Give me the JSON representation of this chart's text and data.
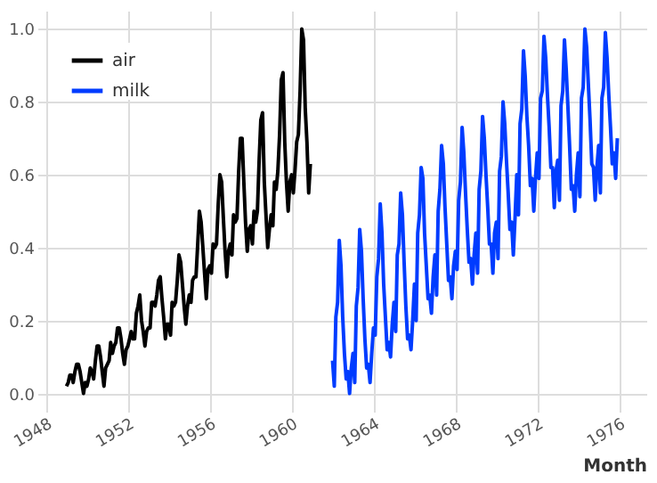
{
  "chart_data": {
    "type": "line",
    "xlabel": "Month",
    "xlim": [
      "1947-08",
      "1977-05"
    ],
    "xticks": [
      "1948",
      "1952",
      "1956",
      "1960",
      "1964",
      "1968",
      "1972",
      "1976"
    ],
    "ylim": [
      -0.05,
      1.05
    ],
    "yticks": [
      {
        "value": 0,
        "label": "0.0"
      },
      {
        "value": 0.2,
        "label": "0.2"
      },
      {
        "value": 0.4,
        "label": "0.4"
      },
      {
        "value": 0.6,
        "label": "0.6"
      },
      {
        "value": 0.8,
        "label": "0.8"
      },
      {
        "value": 1,
        "label": "1.0"
      }
    ],
    "grid": true,
    "legend": "top left",
    "line_style": "solid",
    "marker": "none",
    "series": [
      {
        "name": "air",
        "color": "#000000",
        "x": [
          "1949-01",
          "1949-02",
          "1949-03",
          "1949-04",
          "1949-05",
          "1949-06",
          "1949-07",
          "1949-08",
          "1949-09",
          "1949-10",
          "1949-11",
          "1949-12",
          "1950-01",
          "1950-02",
          "1950-03",
          "1950-04",
          "1950-05",
          "1950-06",
          "1950-07",
          "1950-08",
          "1950-09",
          "1950-10",
          "1950-11",
          "1950-12",
          "1951-01",
          "1951-02",
          "1951-03",
          "1951-04",
          "1951-05",
          "1951-06",
          "1951-07",
          "1951-08",
          "1951-09",
          "1951-10",
          "1951-11",
          "1951-12",
          "1952-01",
          "1952-02",
          "1952-03",
          "1952-04",
          "1952-05",
          "1952-06",
          "1952-07",
          "1952-08",
          "1952-09",
          "1952-10",
          "1952-11",
          "1952-12",
          "1953-01",
          "1953-02",
          "1953-03",
          "1953-04",
          "1953-05",
          "1953-06",
          "1953-07",
          "1953-08",
          "1953-09",
          "1953-10",
          "1953-11",
          "1953-12",
          "1954-01",
          "1954-02",
          "1954-03",
          "1954-04",
          "1954-05",
          "1954-06",
          "1954-07",
          "1954-08",
          "1954-09",
          "1954-10",
          "1954-11",
          "1954-12",
          "1955-01",
          "1955-02",
          "1955-03",
          "1955-04",
          "1955-05",
          "1955-06",
          "1955-07",
          "1955-08",
          "1955-09",
          "1955-10",
          "1955-11",
          "1955-12",
          "1956-01",
          "1956-02",
          "1956-03",
          "1956-04",
          "1956-05",
          "1956-06",
          "1956-07",
          "1956-08",
          "1956-09",
          "1956-10",
          "1956-11",
          "1956-12",
          "1957-01",
          "1957-02",
          "1957-03",
          "1957-04",
          "1957-05",
          "1957-06",
          "1957-07",
          "1957-08",
          "1957-09",
          "1957-10",
          "1957-11",
          "1957-12",
          "1958-01",
          "1958-02",
          "1958-03",
          "1958-04",
          "1958-05",
          "1958-06",
          "1958-07",
          "1958-08",
          "1958-09",
          "1958-10",
          "1958-11",
          "1958-12",
          "1959-01",
          "1959-02",
          "1959-03",
          "1959-04",
          "1959-05",
          "1959-06",
          "1959-07",
          "1959-08",
          "1959-09",
          "1959-10",
          "1959-11",
          "1959-12",
          "1960-01",
          "1960-02",
          "1960-03",
          "1960-04",
          "1960-05",
          "1960-06",
          "1960-07",
          "1960-08",
          "1960-09",
          "1960-10",
          "1960-11",
          "1960-12"
        ],
        "values": [
          0.02,
          0.03,
          0.05,
          0.05,
          0.03,
          0.06,
          0.08,
          0.08,
          0.06,
          0.03,
          0,
          0.03,
          0.02,
          0.04,
          0.07,
          0.06,
          0.04,
          0.09,
          0.13,
          0.13,
          0.1,
          0.06,
          0.02,
          0.07,
          0.08,
          0.09,
          0.14,
          0.11,
          0.13,
          0.14,
          0.18,
          0.18,
          0.15,
          0.11,
          0.08,
          0.12,
          0.13,
          0.15,
          0.17,
          0.15,
          0.15,
          0.22,
          0.24,
          0.27,
          0.2,
          0.17,
          0.13,
          0.17,
          0.18,
          0.18,
          0.25,
          0.25,
          0.24,
          0.27,
          0.31,
          0.32,
          0.26,
          0.21,
          0.15,
          0.19,
          0.19,
          0.16,
          0.25,
          0.24,
          0.25,
          0.31,
          0.38,
          0.36,
          0.3,
          0.24,
          0.19,
          0.24,
          0.27,
          0.25,
          0.31,
          0.32,
          0.32,
          0.41,
          0.5,
          0.47,
          0.4,
          0.33,
          0.26,
          0.34,
          0.35,
          0.33,
          0.41,
          0.4,
          0.41,
          0.52,
          0.6,
          0.58,
          0.48,
          0.39,
          0.32,
          0.39,
          0.41,
          0.38,
          0.49,
          0.47,
          0.48,
          0.61,
          0.7,
          0.7,
          0.58,
          0.47,
          0.39,
          0.45,
          0.46,
          0.41,
          0.5,
          0.47,
          0.5,
          0.64,
          0.75,
          0.77,
          0.58,
          0.49,
          0.4,
          0.45,
          0.49,
          0.46,
          0.58,
          0.56,
          0.61,
          0.71,
          0.86,
          0.88,
          0.69,
          0.58,
          0.5,
          0.58,
          0.6,
          0.55,
          0.61,
          0.69,
          0.71,
          0.83,
          1.0,
          0.97,
          0.78,
          0.69,
          0.55,
          0.63
        ]
      },
      {
        "name": "milk",
        "color": "#003cff",
        "x": [
          "1962-01",
          "1962-02",
          "1962-03",
          "1962-04",
          "1962-05",
          "1962-06",
          "1962-07",
          "1962-08",
          "1962-09",
          "1962-10",
          "1962-11",
          "1962-12",
          "1963-01",
          "1963-02",
          "1963-03",
          "1963-04",
          "1963-05",
          "1963-06",
          "1963-07",
          "1963-08",
          "1963-09",
          "1963-10",
          "1963-11",
          "1963-12",
          "1964-01",
          "1964-02",
          "1964-03",
          "1964-04",
          "1964-05",
          "1964-06",
          "1964-07",
          "1964-08",
          "1964-09",
          "1964-10",
          "1964-11",
          "1964-12",
          "1965-01",
          "1965-02",
          "1965-03",
          "1965-04",
          "1965-05",
          "1965-06",
          "1965-07",
          "1965-08",
          "1965-09",
          "1965-10",
          "1965-11",
          "1965-12",
          "1966-01",
          "1966-02",
          "1966-03",
          "1966-04",
          "1966-05",
          "1966-06",
          "1966-07",
          "1966-08",
          "1966-09",
          "1966-10",
          "1966-11",
          "1966-12",
          "1967-01",
          "1967-02",
          "1967-03",
          "1967-04",
          "1967-05",
          "1967-06",
          "1967-07",
          "1967-08",
          "1967-09",
          "1967-10",
          "1967-11",
          "1967-12",
          "1968-01",
          "1968-02",
          "1968-03",
          "1968-04",
          "1968-05",
          "1968-06",
          "1968-07",
          "1968-08",
          "1968-09",
          "1968-10",
          "1968-11",
          "1968-12",
          "1969-01",
          "1969-02",
          "1969-03",
          "1969-04",
          "1969-05",
          "1969-06",
          "1969-07",
          "1969-08",
          "1969-09",
          "1969-10",
          "1969-11",
          "1969-12",
          "1970-01",
          "1970-02",
          "1970-03",
          "1970-04",
          "1970-05",
          "1970-06",
          "1970-07",
          "1970-08",
          "1970-09",
          "1970-10",
          "1970-11",
          "1970-12",
          "1971-01",
          "1971-02",
          "1971-03",
          "1971-04",
          "1971-05",
          "1971-06",
          "1971-07",
          "1971-08",
          "1971-09",
          "1971-10",
          "1971-11",
          "1971-12",
          "1972-01",
          "1972-02",
          "1972-03",
          "1972-04",
          "1972-05",
          "1972-06",
          "1972-07",
          "1972-08",
          "1972-09",
          "1972-10",
          "1972-11",
          "1972-12",
          "1973-01",
          "1973-02",
          "1973-03",
          "1973-04",
          "1973-05",
          "1973-06",
          "1973-07",
          "1973-08",
          "1973-09",
          "1973-10",
          "1973-11",
          "1973-12",
          "1974-01",
          "1974-02",
          "1974-03",
          "1974-04",
          "1974-05",
          "1974-06",
          "1974-07",
          "1974-08",
          "1974-09",
          "1974-10",
          "1974-11",
          "1974-12",
          "1975-01",
          "1975-02",
          "1975-03",
          "1975-04",
          "1975-05",
          "1975-06",
          "1975-07",
          "1975-08",
          "1975-09",
          "1975-10",
          "1975-11",
          "1975-12"
        ],
        "values": [
          0.09,
          0.02,
          0.21,
          0.25,
          0.42,
          0.35,
          0.21,
          0.11,
          0.04,
          0.06,
          0,
          0.07,
          0.11,
          0.03,
          0.24,
          0.29,
          0.45,
          0.39,
          0.26,
          0.15,
          0.07,
          0.08,
          0.03,
          0.11,
          0.18,
          0.16,
          0.32,
          0.37,
          0.52,
          0.44,
          0.3,
          0.21,
          0.12,
          0.14,
          0.1,
          0.19,
          0.25,
          0.17,
          0.38,
          0.41,
          0.55,
          0.49,
          0.36,
          0.24,
          0.15,
          0.16,
          0.12,
          0.2,
          0.3,
          0.2,
          0.44,
          0.49,
          0.62,
          0.59,
          0.44,
          0.35,
          0.26,
          0.27,
          0.22,
          0.32,
          0.38,
          0.27,
          0.5,
          0.56,
          0.68,
          0.63,
          0.51,
          0.41,
          0.31,
          0.32,
          0.26,
          0.35,
          0.39,
          0.34,
          0.53,
          0.58,
          0.73,
          0.66,
          0.55,
          0.45,
          0.36,
          0.37,
          0.3,
          0.38,
          0.44,
          0.33,
          0.56,
          0.61,
          0.76,
          0.7,
          0.6,
          0.51,
          0.41,
          0.41,
          0.33,
          0.44,
          0.47,
          0.37,
          0.61,
          0.65,
          0.8,
          0.74,
          0.64,
          0.55,
          0.45,
          0.47,
          0.38,
          0.48,
          0.6,
          0.49,
          0.74,
          0.78,
          0.94,
          0.87,
          0.76,
          0.68,
          0.57,
          0.59,
          0.5,
          0.59,
          0.66,
          0.59,
          0.81,
          0.83,
          0.98,
          0.92,
          0.82,
          0.73,
          0.62,
          0.62,
          0.51,
          0.61,
          0.64,
          0.53,
          0.79,
          0.83,
          0.97,
          0.89,
          0.79,
          0.68,
          0.56,
          0.57,
          0.5,
          0.6,
          0.66,
          0.54,
          0.81,
          0.84,
          1.0,
          0.95,
          0.85,
          0.75,
          0.63,
          0.62,
          0.53,
          0.62,
          0.68,
          0.55,
          0.81,
          0.84,
          0.99,
          0.92,
          0.82,
          0.73,
          0.63,
          0.66,
          0.59,
          0.7
        ]
      }
    ]
  }
}
